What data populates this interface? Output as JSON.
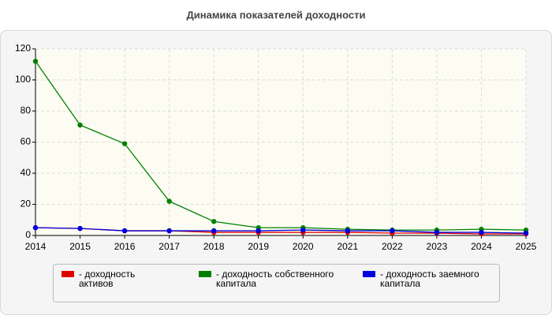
{
  "chart_data": {
    "type": "line",
    "title": "Динамика показателей доходности",
    "x": [
      2014,
      2015,
      2016,
      2017,
      2018,
      2019,
      2020,
      2021,
      2022,
      2023,
      2024,
      2025
    ],
    "xlim": [
      2014,
      2025
    ],
    "xticks": [
      2014,
      2015,
      2016,
      2017,
      2018,
      2019,
      2020,
      2021,
      2022,
      2023,
      2024,
      2025
    ],
    "ylim": [
      0,
      120
    ],
    "yticks": [
      0,
      20,
      40,
      60,
      80,
      100,
      120
    ],
    "grid": true,
    "series": [
      {
        "name": "- доходность активов",
        "color": "#e00000",
        "values": [
          5,
          4.5,
          3,
          3,
          2,
          2,
          2,
          2,
          1.5,
          1.5,
          1,
          1
        ]
      },
      {
        "name": "- доходность собственного капитала",
        "color": "#008000",
        "values": [
          112,
          71,
          59,
          22,
          9,
          5,
          5,
          4,
          3.5,
          3.5,
          4,
          3.5
        ]
      },
      {
        "name": "- доходность заемного капитала",
        "color": "#0000e0",
        "values": [
          5,
          4.5,
          3,
          3,
          3,
          3,
          3.5,
          3,
          3,
          2,
          2,
          1.5
        ]
      }
    ]
  }
}
